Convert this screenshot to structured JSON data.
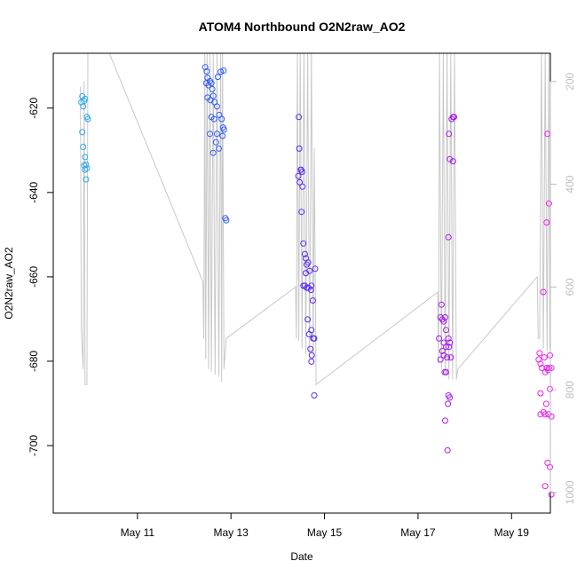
{
  "chart_data": {
    "type": "scatter",
    "title": "ATOM4 Northbound O2N2raw_AO2",
    "xlabel": "Date",
    "ylabel": "O2N2raw_AO2",
    "x_unit": "days in May",
    "xlim": [
      9.2,
      19.83
    ],
    "ylim": [
      -716,
      -607
    ],
    "x_ticks": [
      {
        "value": 11,
        "label": "May 11"
      },
      {
        "value": 13,
        "label": "May 13"
      },
      {
        "value": 15,
        "label": "May 15"
      },
      {
        "value": 17,
        "label": "May 17"
      },
      {
        "value": 19,
        "label": "May 19"
      }
    ],
    "y_ticks": [
      {
        "value": -620,
        "label": "-620"
      },
      {
        "value": -640,
        "label": "-640"
      },
      {
        "value": -660,
        "label": "-660"
      },
      {
        "value": -680,
        "label": "-680"
      },
      {
        "value": -700,
        "label": "-700"
      }
    ],
    "secondary_axis": {
      "side": "right",
      "color": "#bdbdbd",
      "ylim": [
        1040,
        145
      ],
      "ticks": [
        {
          "value": 200,
          "label": "200"
        },
        {
          "value": 400,
          "label": "400"
        },
        {
          "value": 600,
          "label": "600"
        },
        {
          "value": 800,
          "label": "800"
        },
        {
          "value": 1000,
          "label": "1000"
        }
      ]
    },
    "series": [
      {
        "name": "O2N2raw_AO2",
        "kind": "points",
        "colors": [
          "#29a9ee",
          "#2f5cf5",
          "#5a2cf0",
          "#a319ec",
          "#e81ee8"
        ],
        "groups": [
          {
            "color_index": 0,
            "points": [
              [
                9.82,
                -617.2
              ],
              [
                9.8,
                -618.6
              ],
              [
                9.86,
                -618.3
              ],
              [
                9.88,
                -617.8
              ],
              [
                9.84,
                -619.6
              ],
              [
                9.92,
                -622.1
              ],
              [
                9.94,
                -622.6
              ],
              [
                9.82,
                -625.7
              ],
              [
                9.84,
                -629.2
              ],
              [
                9.88,
                -631.6
              ],
              [
                9.9,
                -633.4
              ],
              [
                9.86,
                -633.6
              ],
              [
                9.92,
                -634.3
              ],
              [
                9.88,
                -634.6
              ],
              [
                9.9,
                -636.9
              ]
            ]
          },
          {
            "color_index": 1,
            "points": [
              [
                12.45,
                -610.3
              ],
              [
                12.48,
                -611.3
              ],
              [
                12.5,
                -612.8
              ],
              [
                12.55,
                -613.6
              ],
              [
                12.47,
                -614.1
              ],
              [
                12.52,
                -614.6
              ],
              [
                12.58,
                -614.1
              ],
              [
                12.6,
                -615.5
              ],
              [
                12.62,
                -617.1
              ],
              [
                12.5,
                -617.5
              ],
              [
                12.56,
                -618.1
              ],
              [
                12.65,
                -618.6
              ],
              [
                12.72,
                -612.6
              ],
              [
                12.78,
                -611.4
              ],
              [
                12.84,
                -611.1
              ],
              [
                12.7,
                -619.6
              ],
              [
                12.75,
                -621.6
              ],
              [
                12.58,
                -622.1
              ],
              [
                12.64,
                -622.6
              ],
              [
                12.8,
                -622.6
              ],
              [
                12.83,
                -624.6
              ],
              [
                12.85,
                -625.1
              ],
              [
                12.55,
                -626.1
              ],
              [
                12.7,
                -626.1
              ],
              [
                12.82,
                -626.6
              ],
              [
                12.68,
                -628.1
              ],
              [
                12.74,
                -629.6
              ],
              [
                12.62,
                -630.6
              ],
              [
                12.88,
                -646.1
              ],
              [
                12.9,
                -646.6
              ]
            ]
          },
          {
            "color_index": 2,
            "points": [
              [
                14.45,
                -622.1
              ],
              [
                14.46,
                -629.6
              ],
              [
                14.44,
                -636.1
              ],
              [
                14.5,
                -634.6
              ],
              [
                14.52,
                -635.1
              ],
              [
                14.49,
                -634.6
              ],
              [
                14.47,
                -637.6
              ],
              [
                14.53,
                -638.6
              ],
              [
                14.51,
                -644.6
              ],
              [
                14.55,
                -652.1
              ],
              [
                14.58,
                -654.6
              ],
              [
                14.6,
                -655.6
              ],
              [
                14.62,
                -657.1
              ],
              [
                14.65,
                -656.6
              ],
              [
                14.68,
                -658.6
              ],
              [
                14.8,
                -658.1
              ],
              [
                14.6,
                -659.1
              ],
              [
                14.55,
                -662.1
              ],
              [
                14.58,
                -662.1
              ],
              [
                14.62,
                -662.6
              ],
              [
                14.66,
                -662.6
              ],
              [
                14.72,
                -662.1
              ],
              [
                14.71,
                -663.1
              ],
              [
                14.75,
                -665.6
              ],
              [
                14.64,
                -670.1
              ],
              [
                14.72,
                -672.6
              ],
              [
                14.67,
                -673.6
              ],
              [
                14.78,
                -674.6
              ],
              [
                14.76,
                -674.6
              ],
              [
                14.7,
                -677.1
              ],
              [
                14.73,
                -678.6
              ],
              [
                14.72,
                -680.1
              ],
              [
                14.78,
                -688.1
              ]
            ]
          },
          {
            "color_index": 3,
            "points": [
              [
                17.5,
                -666.6
              ],
              [
                17.48,
                -669.6
              ],
              [
                17.52,
                -670.1
              ],
              [
                17.55,
                -670.6
              ],
              [
                17.58,
                -669.6
              ],
              [
                17.6,
                -672.6
              ],
              [
                17.45,
                -674.6
              ],
              [
                17.55,
                -675.6
              ],
              [
                17.65,
                -674.6
              ],
              [
                17.68,
                -675.6
              ],
              [
                17.52,
                -677.6
              ],
              [
                17.6,
                -676.6
              ],
              [
                17.66,
                -676.6
              ],
              [
                17.48,
                -679.6
              ],
              [
                17.55,
                -678.6
              ],
              [
                17.62,
                -679.1
              ],
              [
                17.7,
                -679.1
              ],
              [
                17.57,
                -682.6
              ],
              [
                17.6,
                -682.6
              ],
              [
                17.65,
                -688.1
              ],
              [
                17.68,
                -688.6
              ],
              [
                17.64,
                -690.1
              ],
              [
                17.58,
                -694.1
              ],
              [
                17.63,
                -701.1
              ],
              [
                17.65,
                -650.6
              ],
              [
                17.68,
                -632.1
              ],
              [
                17.75,
                -632.6
              ],
              [
                17.72,
                -622.6
              ],
              [
                17.75,
                -622.1
              ],
              [
                17.77,
                -622.1
              ],
              [
                17.66,
                -626.1
              ]
            ]
          },
          {
            "color_index": 4,
            "points": [
              [
                19.6,
                -678.1
              ],
              [
                19.58,
                -679.6
              ],
              [
                19.62,
                -680.6
              ],
              [
                19.7,
                -679.1
              ],
              [
                19.65,
                -681.6
              ],
              [
                19.75,
                -681.6
              ],
              [
                19.8,
                -681.6
              ],
              [
                19.85,
                -681.6
              ],
              [
                19.78,
                -682.1
              ],
              [
                19.72,
                -682.6
              ],
              [
                19.82,
                -678.6
              ],
              [
                19.62,
                -687.6
              ],
              [
                19.82,
                -686.6
              ],
              [
                19.74,
                -690.1
              ],
              [
                19.68,
                -692.1
              ],
              [
                19.62,
                -692.6
              ],
              [
                19.72,
                -692.6
              ],
              [
                19.79,
                -692.6
              ],
              [
                19.85,
                -693.1
              ],
              [
                19.77,
                -704.1
              ],
              [
                19.82,
                -705.1
              ],
              [
                19.72,
                -709.6
              ],
              [
                19.85,
                -711.6
              ],
              [
                19.68,
                -663.6
              ],
              [
                19.75,
                -647.1
              ],
              [
                19.8,
                -642.6
              ],
              [
                19.77,
                -626.1
              ]
            ]
          }
        ]
      },
      {
        "name": "secondary",
        "kind": "line",
        "axis": "right",
        "color": "#c8c8c8",
        "points": [
          [
            9.78,
            210
          ],
          [
            9.8,
            680
          ],
          [
            9.84,
            760
          ],
          [
            9.86,
            200
          ],
          [
            9.88,
            790
          ],
          [
            9.92,
            790
          ],
          [
            9.94,
            145
          ],
          [
            9.96,
            145
          ],
          [
            10.4,
            145
          ],
          [
            12.4,
            590
          ],
          [
            12.42,
            700
          ],
          [
            12.44,
            145
          ],
          [
            12.46,
            740
          ],
          [
            12.49,
            145
          ],
          [
            12.52,
            760
          ],
          [
            12.55,
            145
          ],
          [
            12.58,
            765
          ],
          [
            12.62,
            145
          ],
          [
            12.66,
            770
          ],
          [
            12.7,
            145
          ],
          [
            12.74,
            775
          ],
          [
            12.78,
            145
          ],
          [
            12.8,
            785
          ],
          [
            12.82,
            145
          ],
          [
            12.85,
            760
          ],
          [
            12.9,
            700
          ],
          [
            14.38,
            600
          ],
          [
            14.4,
            700
          ],
          [
            14.42,
            145
          ],
          [
            14.45,
            705
          ],
          [
            14.48,
            145
          ],
          [
            14.52,
            720
          ],
          [
            14.56,
            145
          ],
          [
            14.6,
            730
          ],
          [
            14.64,
            145
          ],
          [
            14.68,
            740
          ],
          [
            14.72,
            145
          ],
          [
            14.76,
            740
          ],
          [
            14.78,
            330
          ],
          [
            14.82,
            790
          ],
          [
            17.42,
            610
          ],
          [
            17.44,
            750
          ],
          [
            17.46,
            145
          ],
          [
            17.5,
            760
          ],
          [
            17.54,
            145
          ],
          [
            17.58,
            770
          ],
          [
            17.62,
            145
          ],
          [
            17.66,
            780
          ],
          [
            17.7,
            145
          ],
          [
            17.74,
            780
          ],
          [
            17.78,
            145
          ],
          [
            17.82,
            780
          ],
          [
            17.85,
            760
          ],
          [
            19.55,
            580
          ],
          [
            19.57,
            700
          ],
          [
            19.6,
            700
          ],
          [
            19.64,
            145
          ],
          [
            19.68,
            720
          ],
          [
            19.72,
            145
          ],
          [
            19.76,
            725
          ],
          [
            19.8,
            145
          ],
          [
            19.82,
            720
          ]
        ]
      }
    ]
  }
}
